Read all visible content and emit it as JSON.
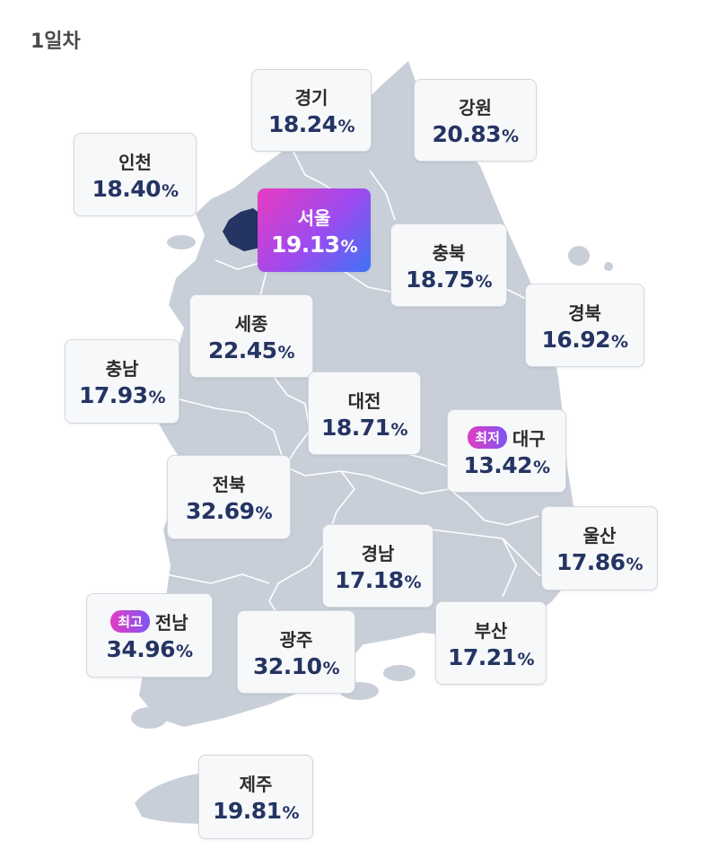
{
  "header": {
    "day_label": "1일차"
  },
  "colors": {
    "map_fill": "#c9cfd9",
    "seoul_fill": "#243463",
    "card_value": "#243463",
    "badge_gradient": [
      "#e23dc3",
      "#7e55f2"
    ],
    "highlight_gradient": [
      "#e93bc0",
      "#9b4bf0",
      "#3d74f5"
    ]
  },
  "percent_sign": "%",
  "regions": [
    {
      "key": "gyeonggi",
      "name": "경기",
      "value": "18.24"
    },
    {
      "key": "gangwon",
      "name": "강원",
      "value": "20.83"
    },
    {
      "key": "incheon",
      "name": "인천",
      "value": "18.40"
    },
    {
      "key": "seoul",
      "name": "서울",
      "value": "19.13"
    },
    {
      "key": "chungbuk",
      "name": "충북",
      "value": "18.75"
    },
    {
      "key": "sejong",
      "name": "세종",
      "value": "22.45"
    },
    {
      "key": "gyeongbuk",
      "name": "경북",
      "value": "16.92"
    },
    {
      "key": "chungnam",
      "name": "충남",
      "value": "17.93"
    },
    {
      "key": "daejeon",
      "name": "대전",
      "value": "18.71"
    },
    {
      "key": "daegu",
      "name": "대구",
      "value": "13.42",
      "badge": "최저"
    },
    {
      "key": "jeonbuk",
      "name": "전북",
      "value": "32.69"
    },
    {
      "key": "ulsan",
      "name": "울산",
      "value": "17.86"
    },
    {
      "key": "gyeongnam",
      "name": "경남",
      "value": "17.18"
    },
    {
      "key": "jeonnam",
      "name": "전남",
      "value": "34.96",
      "badge": "최고"
    },
    {
      "key": "gwangju",
      "name": "광주",
      "value": "32.10"
    },
    {
      "key": "busan",
      "name": "부산",
      "value": "17.21"
    },
    {
      "key": "jeju",
      "name": "제주",
      "value": "19.81"
    }
  ]
}
